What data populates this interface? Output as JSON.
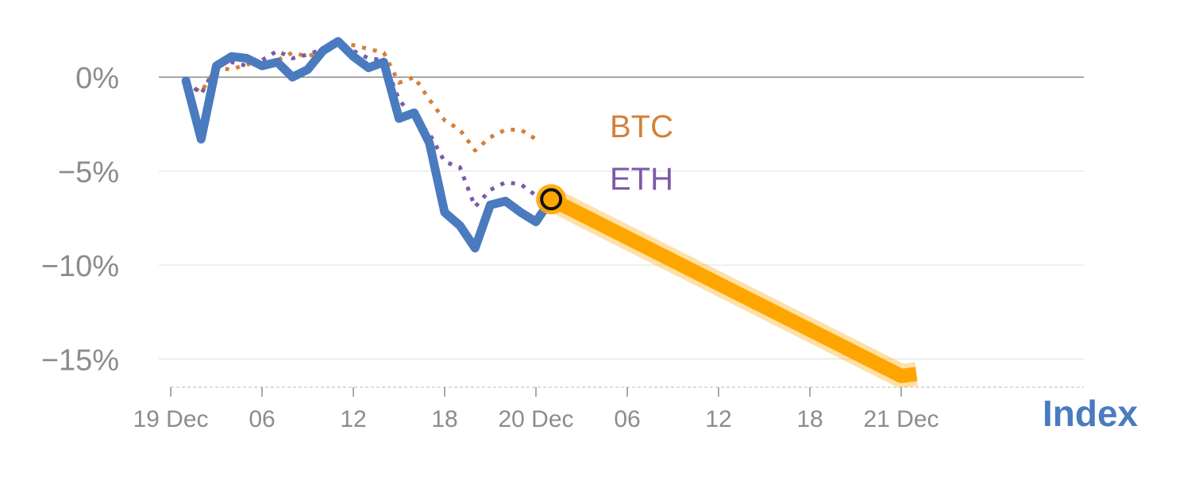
{
  "chart_data": {
    "type": "line",
    "x_axis": {
      "type": "time",
      "range": [
        "2023-12-19 00:00",
        "2023-12-21 12:00"
      ],
      "ticks": [
        {
          "t": "2023-12-19 00:00",
          "label": "19 Dec"
        },
        {
          "t": "2023-12-19 06:00",
          "label": "06"
        },
        {
          "t": "2023-12-19 12:00",
          "label": "12"
        },
        {
          "t": "2023-12-19 18:00",
          "label": "18"
        },
        {
          "t": "2023-12-20 00:00",
          "label": "20 Dec"
        },
        {
          "t": "2023-12-20 06:00",
          "label": "06"
        },
        {
          "t": "2023-12-20 12:00",
          "label": "12"
        },
        {
          "t": "2023-12-20 18:00",
          "label": "18"
        },
        {
          "t": "2023-12-21 00:00",
          "label": "21 Dec"
        }
      ]
    },
    "y_axis": {
      "range": [
        -16.5,
        2.5
      ],
      "ticks": [
        {
          "v": 0,
          "label": "0%"
        },
        {
          "v": -5,
          "label": "−5%"
        },
        {
          "v": -10,
          "label": "−10%"
        },
        {
          "v": -15,
          "label": "−15%"
        }
      ],
      "grid": true
    },
    "series": [
      {
        "name": "BTC",
        "color": "#d4803a",
        "style": "dotted",
        "points": [
          [
            "2023-12-19 01:00",
            -0.3
          ],
          [
            "2023-12-19 02:00",
            -0.8
          ],
          [
            "2023-12-19 03:00",
            0.5
          ],
          [
            "2023-12-19 04:00",
            0.4
          ],
          [
            "2023-12-19 05:00",
            0.7
          ],
          [
            "2023-12-19 06:00",
            0.6
          ],
          [
            "2023-12-19 07:00",
            0.9
          ],
          [
            "2023-12-19 08:00",
            1.3
          ],
          [
            "2023-12-19 09:00",
            1.1
          ],
          [
            "2023-12-19 10:00",
            1.4
          ],
          [
            "2023-12-19 11:00",
            1.8
          ],
          [
            "2023-12-19 12:00",
            1.7
          ],
          [
            "2023-12-19 13:00",
            1.5
          ],
          [
            "2023-12-19 14:00",
            1.3
          ],
          [
            "2023-12-19 15:00",
            -0.3
          ],
          [
            "2023-12-19 16:00",
            0.0
          ],
          [
            "2023-12-19 17:00",
            -1.2
          ],
          [
            "2023-12-19 18:00",
            -2.3
          ],
          [
            "2023-12-19 19:00",
            -2.8
          ],
          [
            "2023-12-19 20:00",
            -3.9
          ],
          [
            "2023-12-19 21:00",
            -3.2
          ],
          [
            "2023-12-19 22:00",
            -2.8
          ],
          [
            "2023-12-19 23:00",
            -2.8
          ],
          [
            "2023-12-20 00:00",
            -3.3
          ]
        ]
      },
      {
        "name": "ETH",
        "color": "#7b5aa6",
        "style": "dotted",
        "points": [
          [
            "2023-12-19 01:00",
            -0.2
          ],
          [
            "2023-12-19 02:00",
            -0.9
          ],
          [
            "2023-12-19 03:00",
            0.6
          ],
          [
            "2023-12-19 04:00",
            0.8
          ],
          [
            "2023-12-19 05:00",
            0.6
          ],
          [
            "2023-12-19 06:00",
            0.9
          ],
          [
            "2023-12-19 07:00",
            1.4
          ],
          [
            "2023-12-19 08:00",
            1.0
          ],
          [
            "2023-12-19 09:00",
            1.2
          ],
          [
            "2023-12-19 10:00",
            1.5
          ],
          [
            "2023-12-19 11:00",
            1.8
          ],
          [
            "2023-12-19 12:00",
            1.4
          ],
          [
            "2023-12-19 13:00",
            1.0
          ],
          [
            "2023-12-19 14:00",
            0.9
          ],
          [
            "2023-12-19 15:00",
            -1.2
          ],
          [
            "2023-12-19 16:00",
            -2.2
          ],
          [
            "2023-12-19 17:00",
            -3.0
          ],
          [
            "2023-12-19 18:00",
            -4.5
          ],
          [
            "2023-12-19 19:00",
            -4.8
          ],
          [
            "2023-12-19 20:00",
            -6.9
          ],
          [
            "2023-12-19 21:00",
            -6.0
          ],
          [
            "2023-12-19 22:00",
            -5.6
          ],
          [
            "2023-12-19 23:00",
            -5.7
          ],
          [
            "2023-12-20 00:00",
            -6.3
          ]
        ]
      },
      {
        "name": "Index",
        "color": "#4a7bbf",
        "style": "solid",
        "points": [
          [
            "2023-12-19 01:00",
            -0.2
          ],
          [
            "2023-12-19 02:00",
            -3.3
          ],
          [
            "2023-12-19 03:00",
            0.6
          ],
          [
            "2023-12-19 04:00",
            1.1
          ],
          [
            "2023-12-19 05:00",
            1.0
          ],
          [
            "2023-12-19 06:00",
            0.6
          ],
          [
            "2023-12-19 07:00",
            0.8
          ],
          [
            "2023-12-19 08:00",
            0.0
          ],
          [
            "2023-12-19 09:00",
            0.4
          ],
          [
            "2023-12-19 10:00",
            1.4
          ],
          [
            "2023-12-19 11:00",
            1.9
          ],
          [
            "2023-12-19 12:00",
            1.1
          ],
          [
            "2023-12-19 13:00",
            0.5
          ],
          [
            "2023-12-19 14:00",
            0.8
          ],
          [
            "2023-12-19 15:00",
            -2.2
          ],
          [
            "2023-12-19 16:00",
            -1.9
          ],
          [
            "2023-12-19 17:00",
            -3.5
          ],
          [
            "2023-12-19 18:00",
            -7.2
          ],
          [
            "2023-12-19 19:00",
            -7.9
          ],
          [
            "2023-12-19 20:00",
            -9.1
          ],
          [
            "2023-12-19 21:00",
            -6.8
          ],
          [
            "2023-12-19 22:00",
            -6.6
          ],
          [
            "2023-12-19 23:00",
            -7.2
          ],
          [
            "2023-12-20 00:00",
            -7.7
          ],
          [
            "2023-12-20 01:00",
            -6.5
          ]
        ]
      },
      {
        "name": "Index projection",
        "color": "#ffa500",
        "style": "thick-glow",
        "points": [
          [
            "2023-12-20 01:00",
            -6.5
          ],
          [
            "2023-12-21 00:00",
            -15.9
          ],
          [
            "2023-12-21 01:00",
            -15.8
          ]
        ]
      }
    ],
    "marker": {
      "t": "2023-12-20 01:00",
      "v": -6.5
    },
    "labels": {
      "btc": "BTC",
      "eth": "ETH",
      "index": "Index"
    }
  }
}
